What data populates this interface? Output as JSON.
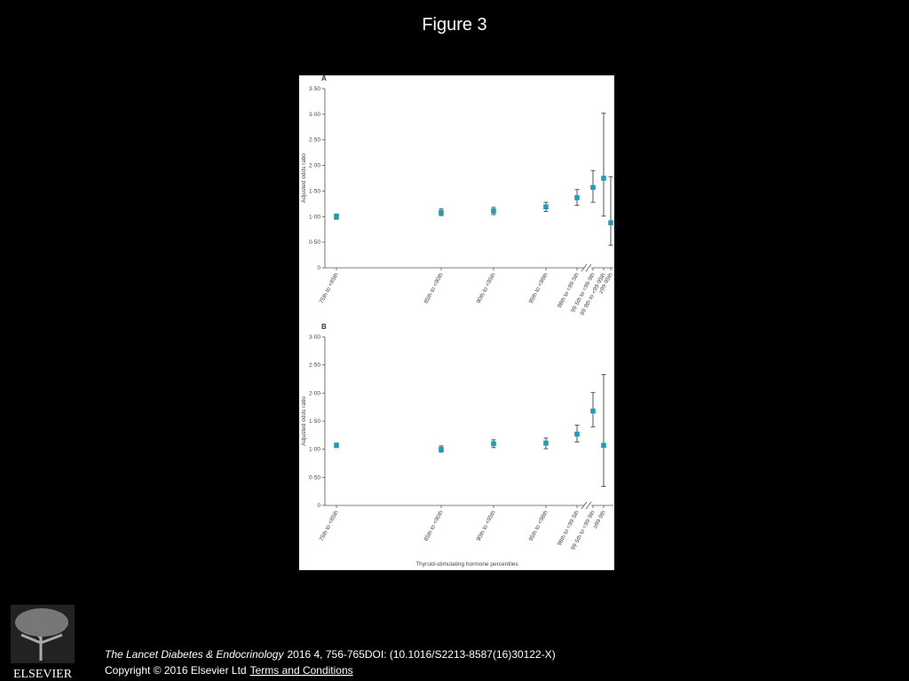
{
  "title": "Figure 3",
  "chart_data": [
    {
      "type": "scatter",
      "panel": "A",
      "ylabel": "Adjusted odds ratio",
      "categories": [
        "75th to <85th",
        "85th to <90th",
        "90th to <95th",
        "95th to <98th",
        "98th to <99·5th",
        "99·5th to <99·9th",
        "99·9th to <99·95th",
        "≥99·95th"
      ],
      "values": [
        1.0,
        1.08,
        1.11,
        1.19,
        1.37,
        1.57,
        1.75,
        0.88
      ],
      "lower": [
        0.95,
        1.02,
        1.04,
        1.1,
        1.22,
        1.28,
        1.01,
        0.44
      ],
      "upper": [
        1.05,
        1.15,
        1.18,
        1.28,
        1.53,
        1.9,
        3.02,
        1.78
      ],
      "color": "#1f9cb8",
      "error_color": "#555555",
      "ylim": [
        0,
        3.5
      ],
      "yticks": [
        0,
        {
          "value": 0.5,
          "label": "0·50"
        },
        {
          "value": 1,
          "label": "1·00"
        },
        {
          "value": 1.5,
          "label": "1·50"
        },
        {
          "value": 2,
          "label": "2·00"
        },
        {
          "value": 2.5,
          "label": "2·50"
        },
        {
          "value": 3,
          "label": "3·00"
        },
        {
          "value": 3.5,
          "label": "3·50"
        }
      ]
    },
    {
      "type": "scatter",
      "panel": "B",
      "ylabel": "Adjusted odds ratio",
      "xlabel": "Thyroid-stimulating hormone percentiles",
      "categories": [
        "75th to <85th",
        "85th to <90th",
        "90th to <95th",
        "95th to <98th",
        "98th to <99·5th",
        "99·5th to <99·9th",
        "≥99·9th"
      ],
      "values": [
        1.07,
        1.0,
        1.1,
        1.11,
        1.27,
        1.68,
        1.07
      ],
      "lower": [
        1.03,
        0.95,
        1.03,
        1.01,
        1.13,
        1.4,
        0.34
      ],
      "upper": [
        1.11,
        1.06,
        1.17,
        1.2,
        1.43,
        2.01,
        2.33
      ],
      "color": "#1f9cb8",
      "error_color": "#555555",
      "ylim": [
        0,
        3
      ],
      "yticks": [
        0,
        {
          "value": 0.5,
          "label": "0·50"
        },
        {
          "value": 1,
          "label": "1·00"
        },
        {
          "value": 1.5,
          "label": "1·50"
        },
        {
          "value": 2,
          "label": "2·00"
        },
        {
          "value": 2.5,
          "label": "2·50"
        },
        {
          "value": 3,
          "label": "3·00"
        }
      ]
    }
  ],
  "footer": {
    "journal": "The Lancet Diabetes & Endocrinology",
    "citation": "2016 4, 756-765DOI: (10.1016/S2213-8587(16)30122-X)",
    "copyright": "Copyright © 2016 Elsevier Ltd",
    "terms": "Terms and Conditions"
  },
  "logo": "ELSEVIER"
}
